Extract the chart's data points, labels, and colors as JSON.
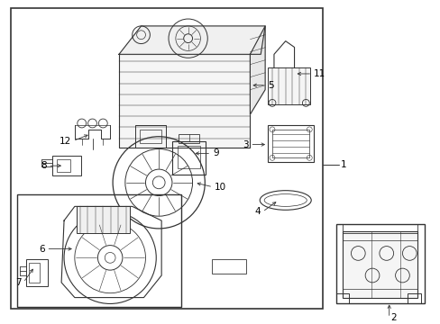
{
  "bg_color": "#ffffff",
  "line_color": "#333333",
  "fig_width": 4.89,
  "fig_height": 3.6,
  "dpi": 100,
  "label_fontsize": 7.5
}
